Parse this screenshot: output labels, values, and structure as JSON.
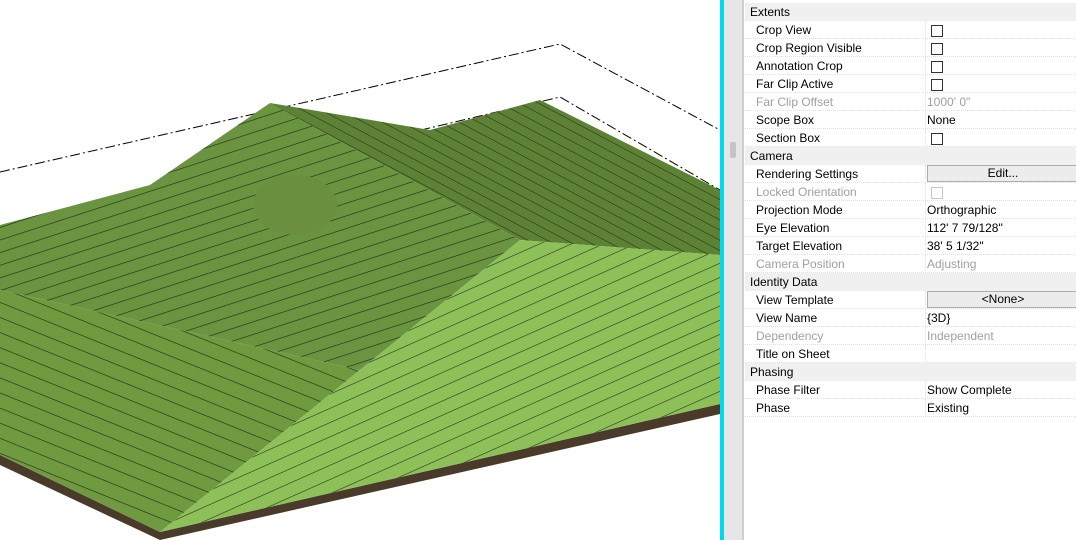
{
  "colors": {
    "accent_divider": "#00d8ec",
    "terrain_light": "#8cbf58",
    "terrain_dark": "#66903c",
    "base": "#4a3a2a"
  },
  "properties": {
    "groups": [
      {
        "title": "Extents",
        "rows": [
          {
            "label": "Crop View",
            "type": "checkbox",
            "checked": false
          },
          {
            "label": "Crop Region Visible",
            "type": "checkbox",
            "checked": false
          },
          {
            "label": "Annotation Crop",
            "type": "checkbox",
            "checked": false
          },
          {
            "label": "Far Clip Active",
            "type": "checkbox",
            "checked": false
          },
          {
            "label": "Far Clip Offset",
            "type": "text",
            "value": "1000'  0\"",
            "disabled": true
          },
          {
            "label": "Scope Box",
            "type": "text",
            "value": "None"
          },
          {
            "label": "Section Box",
            "type": "checkbox",
            "checked": false
          }
        ]
      },
      {
        "title": "Camera",
        "rows": [
          {
            "label": "Rendering Settings",
            "type": "button",
            "value": "Edit..."
          },
          {
            "label": "Locked Orientation",
            "type": "checkbox",
            "checked": false,
            "disabled": true
          },
          {
            "label": "Projection Mode",
            "type": "text",
            "value": "Orthographic"
          },
          {
            "label": "Eye Elevation",
            "type": "text",
            "value": "112'  7 79/128\""
          },
          {
            "label": "Target Elevation",
            "type": "text",
            "value": "38'  5 1/32\""
          },
          {
            "label": "Camera Position",
            "type": "text",
            "value": "Adjusting",
            "disabled": true
          }
        ]
      },
      {
        "title": "Identity Data",
        "rows": [
          {
            "label": "View Template",
            "type": "button",
            "value": "<None>"
          },
          {
            "label": "View Name",
            "type": "text",
            "value": "{3D}"
          },
          {
            "label": "Dependency",
            "type": "text",
            "value": "Independent",
            "disabled": true
          },
          {
            "label": "Title on Sheet",
            "type": "text",
            "value": ""
          }
        ]
      },
      {
        "title": "Phasing",
        "rows": [
          {
            "label": "Phase Filter",
            "type": "text",
            "value": "Show Complete"
          },
          {
            "label": "Phase",
            "type": "text",
            "value": "Existing"
          }
        ]
      }
    ]
  }
}
